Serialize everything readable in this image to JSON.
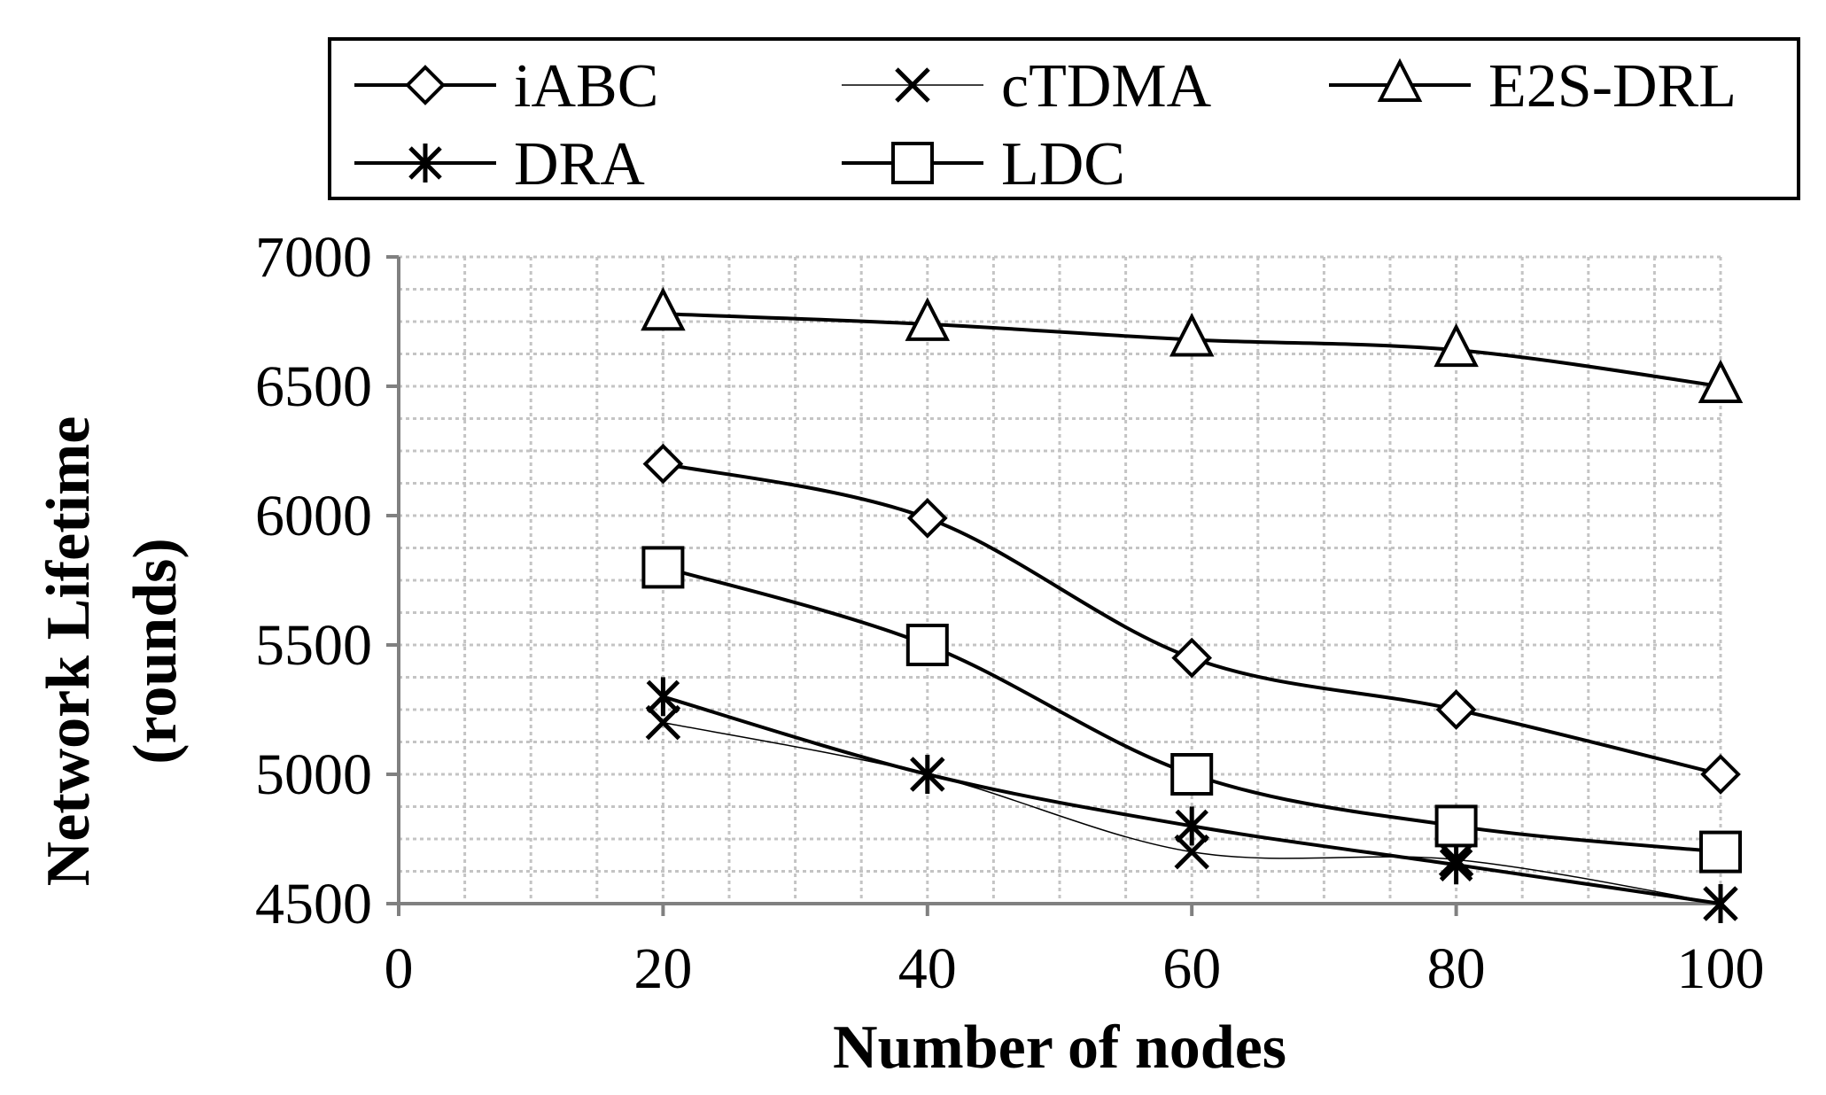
{
  "chart_data": {
    "type": "line",
    "title": "",
    "xlabel": "Number of nodes",
    "ylabel": "Network Lifetime (rounds)",
    "ylabel_lines": [
      "Network Lifetime",
      "(rounds)"
    ],
    "xlim": [
      0,
      100
    ],
    "ylim": [
      4500,
      7000
    ],
    "x_ticks": [
      0,
      20,
      40,
      60,
      80,
      100
    ],
    "y_ticks": [
      4500,
      5000,
      5500,
      6000,
      6500,
      7000
    ],
    "x_tick_labels": [
      "0",
      "20",
      "40",
      "60",
      "80",
      "100"
    ],
    "y_tick_labels": [
      "4500",
      "5000",
      "5500",
      "6000",
      "6500",
      "7000"
    ],
    "grid": true,
    "legend_position": "top",
    "x": [
      20,
      40,
      60,
      80,
      100
    ],
    "series": [
      {
        "name": "iABC",
        "marker": "diamond",
        "values": [
          6200,
          5990,
          5450,
          5250,
          5000
        ]
      },
      {
        "name": "cTDMA",
        "marker": "x",
        "values": [
          5200,
          5000,
          4700,
          4670,
          4500
        ]
      },
      {
        "name": "E2S-DRL",
        "marker": "triangle",
        "values": [
          6780,
          6740,
          6680,
          6640,
          6500
        ]
      },
      {
        "name": "DRA",
        "marker": "asterisk",
        "values": [
          5300,
          5000,
          4800,
          4650,
          4500
        ]
      },
      {
        "name": "LDC",
        "marker": "square",
        "values": [
          5800,
          5500,
          5000,
          4800,
          4700
        ]
      }
    ]
  }
}
